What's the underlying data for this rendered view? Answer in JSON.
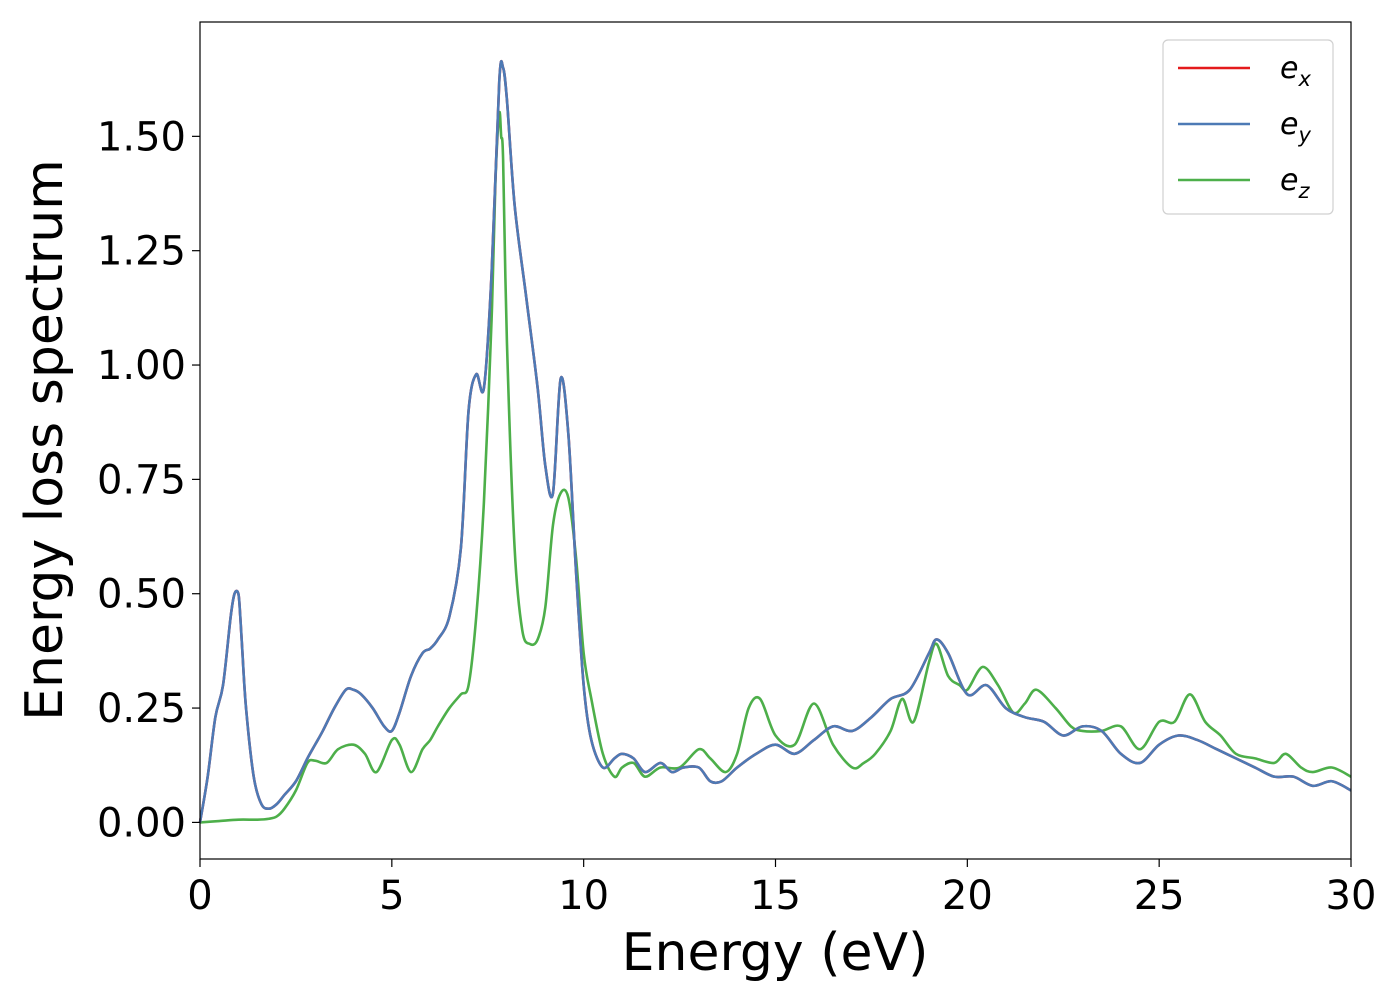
{
  "chart_data": {
    "type": "line",
    "xlabel": "Energy (eV)",
    "ylabel": "Energy loss spectrum",
    "xlim": [
      0,
      30
    ],
    "ylim": [
      -0.08,
      1.75
    ],
    "xticks": [
      0,
      5,
      10,
      15,
      20,
      25,
      30
    ],
    "xtick_labels": [
      "0",
      "5",
      "10",
      "15",
      "20",
      "25",
      "30"
    ],
    "yticks": [
      0.0,
      0.25,
      0.5,
      0.75,
      1.0,
      1.25,
      1.5
    ],
    "ytick_labels": [
      "0.00",
      "0.25",
      "0.50",
      "0.75",
      "1.00",
      "1.25",
      "1.50"
    ],
    "grid": false,
    "legend_position": "top-right",
    "series": [
      {
        "name": "e_x",
        "legend_base": "e",
        "legend_sub": "x",
        "color": "#e41a1c",
        "x": [
          0,
          0.2,
          0.4,
          0.6,
          0.8,
          0.9,
          1.0,
          1.05,
          1.1,
          1.2,
          1.4,
          1.6,
          1.8,
          2.0,
          2.2,
          2.5,
          2.8,
          3.0,
          3.2,
          3.5,
          3.8,
          4.0,
          4.2,
          4.5,
          4.8,
          5.0,
          5.2,
          5.5,
          5.8,
          6.0,
          6.2,
          6.5,
          6.8,
          7.0,
          7.2,
          7.4,
          7.6,
          7.8,
          7.9,
          8.0,
          8.2,
          8.5,
          8.8,
          9.0,
          9.2,
          9.4,
          9.6,
          9.8,
          10.0,
          10.2,
          10.5,
          10.8,
          11.0,
          11.3,
          11.6,
          12.0,
          12.3,
          12.6,
          13.0,
          13.3,
          13.6,
          14.0,
          14.5,
          15.0,
          15.5,
          16.0,
          16.5,
          17.0,
          17.5,
          18.0,
          18.5,
          19.0,
          19.2,
          19.5,
          20.0,
          20.5,
          21.0,
          21.5,
          22.0,
          22.5,
          23.0,
          23.5,
          24.0,
          24.5,
          25.0,
          25.5,
          26.0,
          26.5,
          27.0,
          27.5,
          28.0,
          28.5,
          29.0,
          29.5,
          30.0
        ],
        "y": [
          0.0,
          0.1,
          0.23,
          0.3,
          0.45,
          0.5,
          0.5,
          0.45,
          0.38,
          0.25,
          0.1,
          0.04,
          0.03,
          0.04,
          0.06,
          0.09,
          0.14,
          0.17,
          0.2,
          0.25,
          0.29,
          0.29,
          0.28,
          0.25,
          0.21,
          0.2,
          0.24,
          0.32,
          0.37,
          0.38,
          0.4,
          0.45,
          0.6,
          0.9,
          0.98,
          0.95,
          1.2,
          1.62,
          1.65,
          1.58,
          1.35,
          1.15,
          0.95,
          0.78,
          0.72,
          0.97,
          0.85,
          0.55,
          0.3,
          0.18,
          0.12,
          0.14,
          0.15,
          0.14,
          0.11,
          0.13,
          0.11,
          0.12,
          0.12,
          0.09,
          0.09,
          0.12,
          0.15,
          0.17,
          0.15,
          0.18,
          0.21,
          0.2,
          0.23,
          0.27,
          0.29,
          0.37,
          0.4,
          0.37,
          0.28,
          0.3,
          0.25,
          0.23,
          0.22,
          0.19,
          0.21,
          0.2,
          0.15,
          0.13,
          0.17,
          0.19,
          0.18,
          0.16,
          0.14,
          0.12,
          0.1,
          0.1,
          0.08,
          0.09,
          0.07
        ]
      },
      {
        "name": "e_y",
        "legend_base": "e",
        "legend_sub": "y",
        "color": "#4d7ab5",
        "x": [
          0,
          0.2,
          0.4,
          0.6,
          0.8,
          0.9,
          1.0,
          1.05,
          1.1,
          1.2,
          1.4,
          1.6,
          1.8,
          2.0,
          2.2,
          2.5,
          2.8,
          3.0,
          3.2,
          3.5,
          3.8,
          4.0,
          4.2,
          4.5,
          4.8,
          5.0,
          5.2,
          5.5,
          5.8,
          6.0,
          6.2,
          6.5,
          6.8,
          7.0,
          7.2,
          7.4,
          7.6,
          7.8,
          7.9,
          8.0,
          8.2,
          8.5,
          8.8,
          9.0,
          9.2,
          9.4,
          9.6,
          9.8,
          10.0,
          10.2,
          10.5,
          10.8,
          11.0,
          11.3,
          11.6,
          12.0,
          12.3,
          12.6,
          13.0,
          13.3,
          13.6,
          14.0,
          14.5,
          15.0,
          15.5,
          16.0,
          16.5,
          17.0,
          17.5,
          18.0,
          18.5,
          19.0,
          19.2,
          19.5,
          20.0,
          20.5,
          21.0,
          21.5,
          22.0,
          22.5,
          23.0,
          23.5,
          24.0,
          24.5,
          25.0,
          25.5,
          26.0,
          26.5,
          27.0,
          27.5,
          28.0,
          28.5,
          29.0,
          29.5,
          30.0
        ],
        "y": [
          0.0,
          0.1,
          0.23,
          0.3,
          0.45,
          0.5,
          0.5,
          0.45,
          0.38,
          0.25,
          0.1,
          0.04,
          0.03,
          0.04,
          0.06,
          0.09,
          0.14,
          0.17,
          0.2,
          0.25,
          0.29,
          0.29,
          0.28,
          0.25,
          0.21,
          0.2,
          0.24,
          0.32,
          0.37,
          0.38,
          0.4,
          0.45,
          0.6,
          0.9,
          0.98,
          0.95,
          1.2,
          1.62,
          1.65,
          1.58,
          1.35,
          1.15,
          0.95,
          0.78,
          0.72,
          0.97,
          0.85,
          0.55,
          0.3,
          0.18,
          0.12,
          0.14,
          0.15,
          0.14,
          0.11,
          0.13,
          0.11,
          0.12,
          0.12,
          0.09,
          0.09,
          0.12,
          0.15,
          0.17,
          0.15,
          0.18,
          0.21,
          0.2,
          0.23,
          0.27,
          0.29,
          0.37,
          0.4,
          0.37,
          0.28,
          0.3,
          0.25,
          0.23,
          0.22,
          0.19,
          0.21,
          0.2,
          0.15,
          0.13,
          0.17,
          0.19,
          0.18,
          0.16,
          0.14,
          0.12,
          0.1,
          0.1,
          0.08,
          0.09,
          0.07
        ]
      },
      {
        "name": "e_z",
        "legend_base": "e",
        "legend_sub": "z",
        "color": "#4daf4a",
        "x": [
          0,
          0.5,
          1.0,
          1.5,
          1.8,
          2.0,
          2.2,
          2.5,
          2.8,
          3.0,
          3.3,
          3.6,
          4.0,
          4.3,
          4.6,
          5.0,
          5.2,
          5.5,
          5.8,
          6.0,
          6.2,
          6.5,
          6.8,
          7.0,
          7.2,
          7.4,
          7.6,
          7.7,
          7.8,
          7.85,
          7.9,
          8.0,
          8.2,
          8.4,
          8.6,
          8.8,
          9.0,
          9.2,
          9.4,
          9.6,
          9.8,
          10.0,
          10.2,
          10.5,
          10.8,
          11.0,
          11.3,
          11.6,
          12.0,
          12.5,
          13.0,
          13.3,
          13.7,
          14.0,
          14.3,
          14.6,
          15.0,
          15.5,
          16.0,
          16.5,
          17.0,
          17.3,
          17.6,
          18.0,
          18.3,
          18.6,
          19.0,
          19.2,
          19.5,
          19.8,
          20.0,
          20.4,
          20.8,
          21.2,
          21.5,
          21.8,
          22.3,
          22.7,
          23.0,
          23.5,
          24.0,
          24.5,
          25.0,
          25.4,
          25.8,
          26.2,
          26.6,
          27.0,
          27.5,
          28.0,
          28.3,
          28.7,
          29.0,
          29.5,
          30.0
        ],
        "y": [
          0.0,
          0.003,
          0.006,
          0.006,
          0.008,
          0.013,
          0.03,
          0.07,
          0.13,
          0.135,
          0.13,
          0.16,
          0.17,
          0.15,
          0.11,
          0.18,
          0.17,
          0.11,
          0.16,
          0.18,
          0.21,
          0.25,
          0.28,
          0.3,
          0.45,
          0.7,
          1.1,
          1.4,
          1.55,
          1.5,
          1.45,
          1.05,
          0.6,
          0.42,
          0.39,
          0.4,
          0.47,
          0.65,
          0.72,
          0.71,
          0.58,
          0.37,
          0.27,
          0.15,
          0.1,
          0.12,
          0.13,
          0.1,
          0.12,
          0.12,
          0.16,
          0.14,
          0.11,
          0.15,
          0.25,
          0.27,
          0.19,
          0.17,
          0.26,
          0.17,
          0.12,
          0.13,
          0.15,
          0.2,
          0.27,
          0.22,
          0.35,
          0.39,
          0.32,
          0.3,
          0.29,
          0.34,
          0.3,
          0.24,
          0.26,
          0.29,
          0.25,
          0.21,
          0.2,
          0.2,
          0.21,
          0.16,
          0.22,
          0.22,
          0.28,
          0.22,
          0.19,
          0.15,
          0.14,
          0.13,
          0.15,
          0.12,
          0.11,
          0.12,
          0.1
        ]
      }
    ]
  }
}
